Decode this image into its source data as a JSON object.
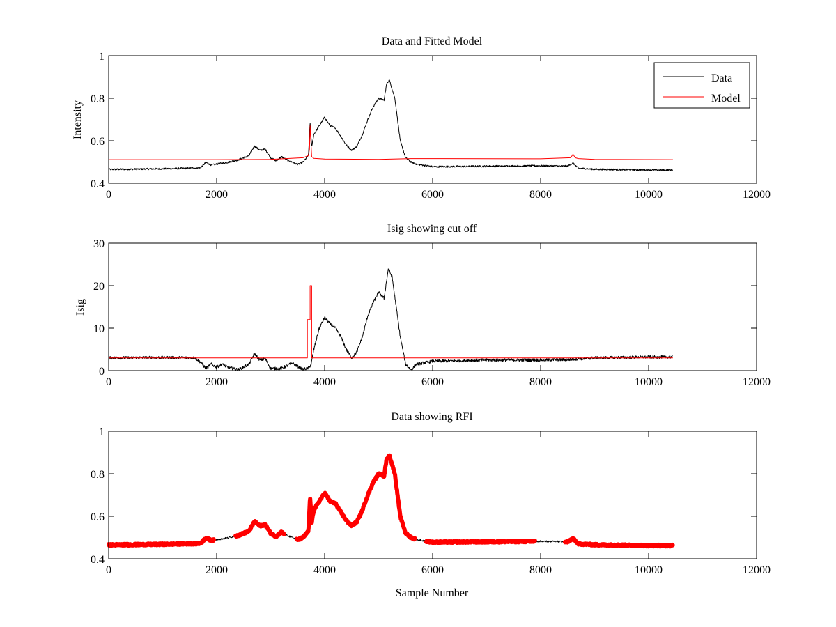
{
  "figure": {
    "background": "#ffffff",
    "colors": {
      "data": "#000000",
      "model": "#ff0000",
      "rfi": "#ff0000",
      "axes": "#000000"
    }
  },
  "chart_data": [
    {
      "type": "line",
      "title": "Data and Fitted Model",
      "xlabel": "",
      "ylabel": "Intensity",
      "xlim": [
        0,
        12000
      ],
      "ylim": [
        0.4,
        1
      ],
      "xticks": [
        0,
        2000,
        4000,
        6000,
        8000,
        10000,
        12000
      ],
      "yticks": [
        0.4,
        0.6,
        0.8,
        1
      ],
      "xtick_labels": [
        "0",
        "2000",
        "4000",
        "6000",
        "8000",
        "10000",
        "12000"
      ],
      "ytick_labels": [
        "0.4",
        "0.6",
        "0.8",
        "1"
      ],
      "grid": false,
      "legend": {
        "placement": "top-right",
        "entries": [
          "Data",
          "Model"
        ]
      },
      "series": [
        {
          "name": "Data",
          "color": "#000000",
          "width": 1,
          "noise": 0.004,
          "x": [
            0,
            1000,
            1700,
            1800,
            1900,
            2000,
            2200,
            2400,
            2600,
            2700,
            2800,
            2900,
            3000,
            3100,
            3200,
            3300,
            3400,
            3500,
            3600,
            3700,
            3730,
            3760,
            3800,
            3900,
            4000,
            4100,
            4200,
            4300,
            4400,
            4500,
            4600,
            4700,
            4800,
            4900,
            5000,
            5100,
            5150,
            5200,
            5300,
            5400,
            5500,
            5600,
            5700,
            6000,
            7000,
            8000,
            8500,
            8600,
            8700,
            9000,
            10000,
            10450
          ],
          "y": [
            0.465,
            0.468,
            0.472,
            0.498,
            0.486,
            0.49,
            0.498,
            0.51,
            0.53,
            0.575,
            0.555,
            0.56,
            0.52,
            0.505,
            0.525,
            0.51,
            0.5,
            0.488,
            0.5,
            0.53,
            0.69,
            0.57,
            0.63,
            0.67,
            0.71,
            0.67,
            0.66,
            0.62,
            0.58,
            0.555,
            0.575,
            0.63,
            0.7,
            0.76,
            0.8,
            0.79,
            0.87,
            0.885,
            0.8,
            0.6,
            0.52,
            0.5,
            0.49,
            0.478,
            0.48,
            0.482,
            0.48,
            0.495,
            0.47,
            0.466,
            0.462,
            0.462
          ]
        },
        {
          "name": "Model",
          "color": "#ff0000",
          "width": 1,
          "noise": 0,
          "x": [
            0,
            2000,
            3000,
            3600,
            3700,
            3720,
            3730,
            3760,
            3800,
            4000,
            5000,
            5600,
            8000,
            8560,
            8600,
            8640,
            8700,
            9000,
            10450
          ],
          "y": [
            0.511,
            0.511,
            0.512,
            0.52,
            0.53,
            0.56,
            0.67,
            0.525,
            0.517,
            0.514,
            0.512,
            0.516,
            0.515,
            0.52,
            0.537,
            0.52,
            0.516,
            0.512,
            0.511
          ]
        }
      ]
    },
    {
      "type": "line",
      "title": "Isig showing cut off",
      "xlabel": "",
      "ylabel": "Isig",
      "xlim": [
        0,
        12000
      ],
      "ylim": [
        0,
        30
      ],
      "xticks": [
        0,
        2000,
        4000,
        6000,
        8000,
        10000,
        12000
      ],
      "yticks": [
        0,
        10,
        20,
        30
      ],
      "xtick_labels": [
        "0",
        "2000",
        "4000",
        "6000",
        "8000",
        "10000",
        "12000"
      ],
      "ytick_labels": [
        "0",
        "10",
        "20",
        "30"
      ],
      "grid": false,
      "series": [
        {
          "name": "",
          "color": "#000000",
          "width": 1,
          "noise": 0.35,
          "x": [
            0,
            1000,
            1600,
            1700,
            1800,
            1900,
            2000,
            2100,
            2200,
            2400,
            2600,
            2700,
            2800,
            2900,
            3000,
            3200,
            3400,
            3500,
            3600,
            3700,
            3750,
            3800,
            3900,
            4000,
            4100,
            4200,
            4300,
            4400,
            4500,
            4600,
            4700,
            4800,
            4900,
            5000,
            5100,
            5180,
            5250,
            5400,
            5500,
            5600,
            5700,
            6000,
            7000,
            8000,
            8500,
            9000,
            10000,
            10450
          ],
          "y": [
            3,
            3.1,
            3,
            2,
            0.5,
            1.5,
            0.8,
            1.5,
            0.8,
            0.2,
            1.5,
            4,
            2.5,
            2.8,
            0.5,
            0.5,
            1.8,
            1,
            0.3,
            0.6,
            1.5,
            5,
            10,
            12.5,
            11,
            10,
            8,
            5,
            3,
            4.5,
            8,
            13,
            16,
            18.5,
            17,
            24,
            22,
            8,
            1.5,
            0.2,
            1.5,
            2.2,
            2.5,
            2.5,
            2.6,
            3,
            3.2,
            3.2
          ]
        },
        {
          "name": "",
          "color": "#ff0000",
          "width": 1,
          "noise": 0,
          "x": [
            0,
            3680,
            3680,
            3730,
            3730,
            3760,
            3760,
            10450
          ],
          "y": [
            3,
            3,
            12,
            12,
            20,
            20,
            3,
            3
          ]
        }
      ]
    },
    {
      "type": "line",
      "title": "Data showing RFI",
      "xlabel": "Sample Number",
      "ylabel": "",
      "xlim": [
        0,
        12000
      ],
      "ylim": [
        0.4,
        1
      ],
      "xticks": [
        0,
        2000,
        4000,
        6000,
        8000,
        10000,
        12000
      ],
      "yticks": [
        0.4,
        0.6,
        0.8,
        1
      ],
      "xtick_labels": [
        "0",
        "2000",
        "4000",
        "6000",
        "8000",
        "10000",
        "12000"
      ],
      "ytick_labels": [
        "0.4",
        "0.6",
        "0.8",
        "1"
      ],
      "grid": false,
      "series": [
        {
          "name": "",
          "color": "#000000",
          "width": 1,
          "noise": 0.004,
          "x": [
            0,
            1000,
            1700,
            1800,
            1900,
            2000,
            2200,
            2400,
            2600,
            2700,
            2800,
            2900,
            3000,
            3100,
            3200,
            3300,
            3400,
            3500,
            3600,
            3700,
            3730,
            3760,
            3800,
            3900,
            4000,
            4100,
            4200,
            4300,
            4400,
            4500,
            4600,
            4700,
            4800,
            4900,
            5000,
            5100,
            5150,
            5200,
            5300,
            5400,
            5500,
            5600,
            5700,
            6000,
            7000,
            8000,
            8500,
            8600,
            8700,
            9000,
            10000,
            10450
          ],
          "y": [
            0.465,
            0.468,
            0.472,
            0.498,
            0.486,
            0.49,
            0.498,
            0.51,
            0.53,
            0.575,
            0.555,
            0.56,
            0.52,
            0.505,
            0.525,
            0.51,
            0.5,
            0.488,
            0.5,
            0.53,
            0.69,
            0.57,
            0.63,
            0.67,
            0.71,
            0.67,
            0.66,
            0.62,
            0.58,
            0.555,
            0.575,
            0.63,
            0.7,
            0.76,
            0.8,
            0.79,
            0.87,
            0.885,
            0.8,
            0.6,
            0.52,
            0.5,
            0.49,
            0.478,
            0.48,
            0.482,
            0.48,
            0.495,
            0.47,
            0.466,
            0.462,
            0.462
          ]
        }
      ],
      "rfi_overlay": {
        "color": "#ff0000",
        "width": 6,
        "ranges": [
          [
            0,
            1950
          ],
          [
            2350,
            3250
          ],
          [
            3480,
            5680
          ],
          [
            5880,
            7900
          ],
          [
            8450,
            10450
          ]
        ]
      }
    }
  ]
}
